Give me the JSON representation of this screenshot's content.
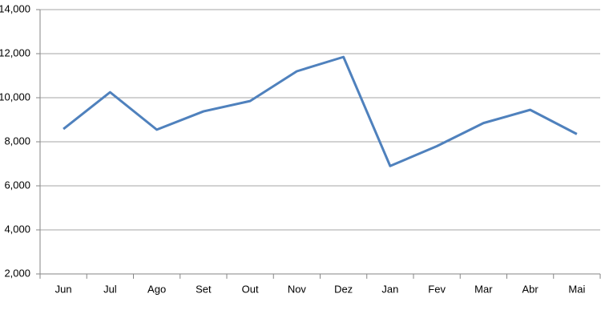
{
  "chart_data": {
    "type": "line",
    "categories": [
      "Jun",
      "Jul",
      "Ago",
      "Set",
      "Out",
      "Nov",
      "Dez",
      "Jan",
      "Fev",
      "Mar",
      "Abr",
      "Mai"
    ],
    "values": [
      8580,
      10250,
      8550,
      9380,
      9850,
      11200,
      11850,
      6900,
      7800,
      8850,
      9450,
      8350
    ],
    "color": "#4f81bd",
    "ylim": [
      2000,
      14000
    ],
    "yticks": [
      {
        "value": 2000,
        "label": "2,000"
      },
      {
        "value": 4000,
        "label": "4,000"
      },
      {
        "value": 6000,
        "label": "6,000"
      },
      {
        "value": 8000,
        "label": "8,000"
      },
      {
        "value": 10000,
        "label": "10,000"
      },
      {
        "value": 12000,
        "label": "12,000"
      },
      {
        "value": 14000,
        "label": "14,000"
      }
    ],
    "grid": true
  }
}
